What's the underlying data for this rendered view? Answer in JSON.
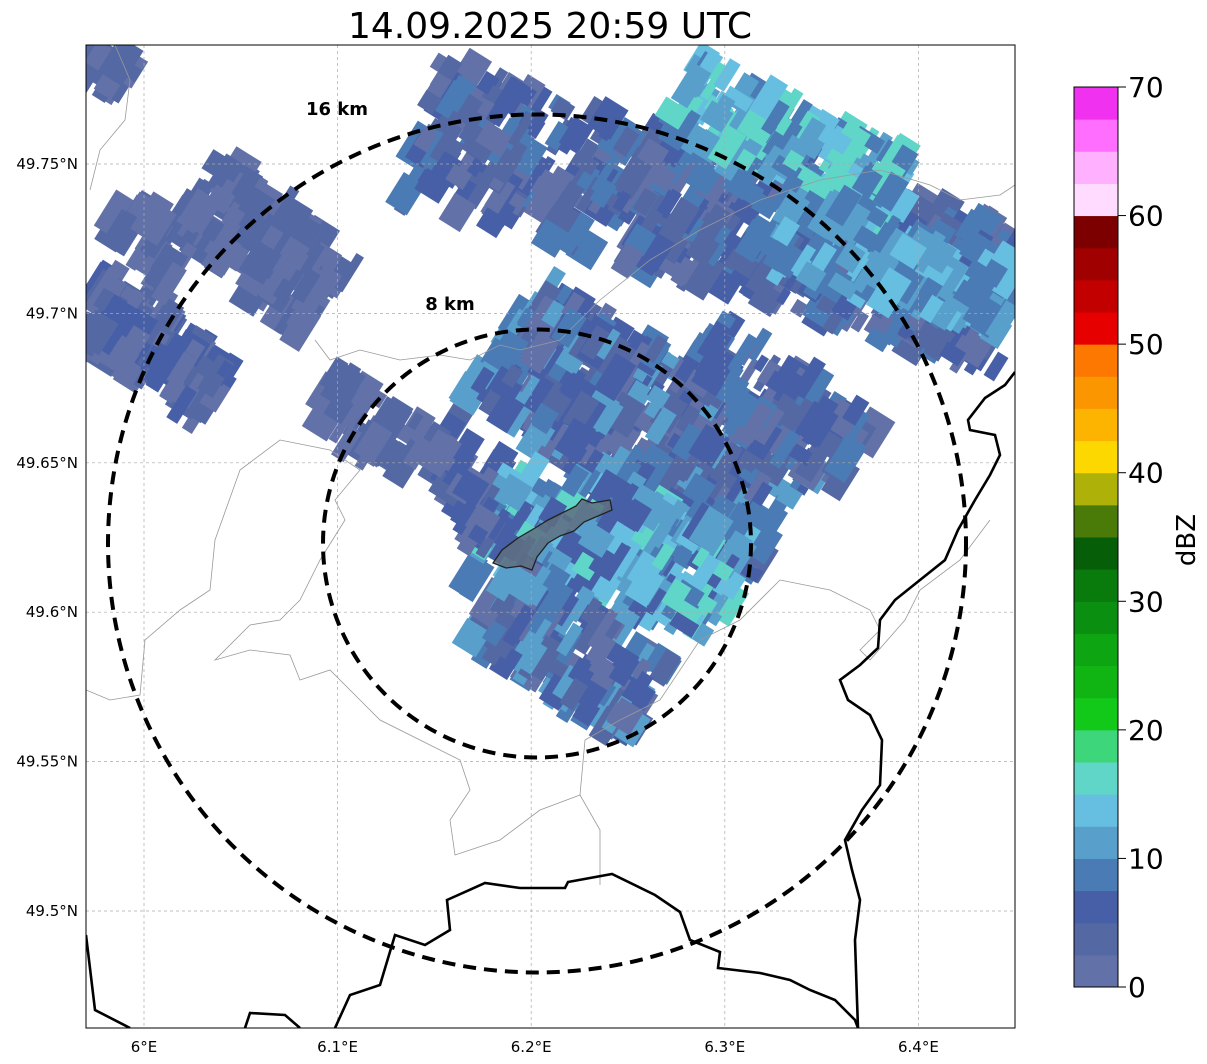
{
  "title": "14.09.2025 20:59 UTC",
  "map": {
    "lon_ticks": [
      {
        "v": 6.0,
        "label": "6°E"
      },
      {
        "v": 6.1,
        "label": "6.1°E"
      },
      {
        "v": 6.2,
        "label": "6.2°E"
      },
      {
        "v": 6.3,
        "label": "6.3°E"
      },
      {
        "v": 6.4,
        "label": "6.4°E"
      }
    ],
    "lat_ticks": [
      {
        "v": 49.75,
        "label": "49.75°N"
      },
      {
        "v": 49.7,
        "label": "49.7°N"
      },
      {
        "v": 49.65,
        "label": "49.65°N"
      },
      {
        "v": 49.6,
        "label": "49.6°N"
      },
      {
        "v": 49.55,
        "label": "49.55°N"
      },
      {
        "v": 49.5,
        "label": "49.5°N"
      }
    ],
    "lon_range": [
      5.97,
      6.45
    ],
    "lat_range": [
      49.46,
      49.79
    ],
    "radar_center": {
      "lon": 6.203,
      "lat": 49.623
    },
    "range_rings": [
      {
        "radius_km": 8,
        "label": "8 km"
      },
      {
        "radius_km": 16,
        "label": "16 km"
      }
    ],
    "grid": true
  },
  "colorbar": {
    "label": "dBZ",
    "min": 0,
    "max": 70,
    "tick_values": [
      0,
      10,
      20,
      30,
      40,
      50,
      60,
      70
    ],
    "tick_labels": [
      "0",
      "10",
      "20",
      "30",
      "40",
      "50",
      "60",
      "70"
    ],
    "colors": [
      "#6272a8",
      "#5468a4",
      "#465fa6",
      "#4a7bb5",
      "#58a0cb",
      "#66bee0",
      "#60d6c8",
      "#3ed67a",
      "#12c91a",
      "#10b514",
      "#0ea512",
      "#0b8f10",
      "#097a0c",
      "#075e09",
      "#4a7a08",
      "#aeb208",
      "#fcd800",
      "#fcb400",
      "#fc9600",
      "#fc7800",
      "#e60000",
      "#c20000",
      "#a00000",
      "#7c0000",
      "#ffdcff",
      "#ffb0ff",
      "#ff6eff",
      "#f032f0"
    ]
  }
}
